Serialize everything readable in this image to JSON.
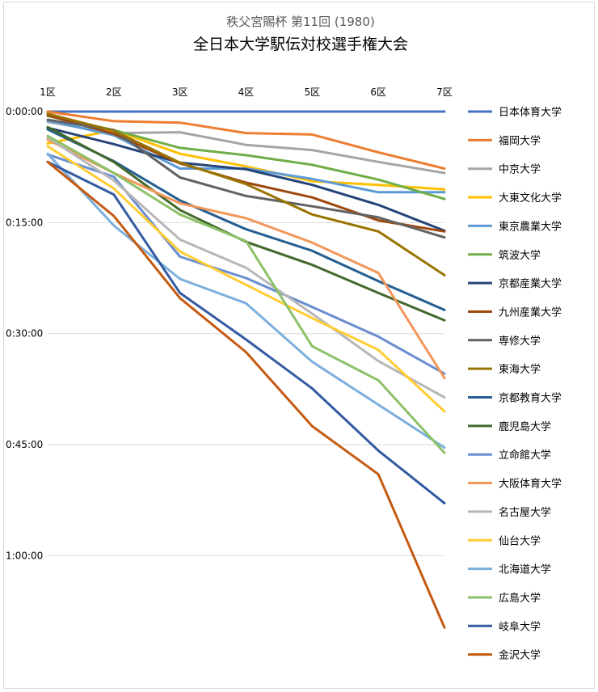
{
  "chart_data": {
    "type": "line",
    "title": "全日本大学駅伝対校選手権大会",
    "subtitle": "秩父宮賜杯 第11回 (1980)",
    "categories": [
      "1区",
      "2区",
      "3区",
      "4区",
      "5区",
      "6区",
      "7区"
    ],
    "y_ticks": [
      "0:00:00",
      "0:15:00",
      "0:30:00",
      "0:45:00",
      "1:00:00"
    ],
    "y_unit": "minutes behind leader",
    "ylim": [
      0,
      70
    ],
    "y_reversed": true,
    "legend_position": "right",
    "series": [
      {
        "name": "日本体育大学",
        "color": "#4472C4",
        "values": [
          0,
          0,
          0,
          0,
          0,
          0,
          0
        ]
      },
      {
        "name": "福岡大学",
        "color": "#ED7D31",
        "values": [
          0,
          1.3,
          1.5,
          2.9,
          3.1,
          5.5,
          7.7
        ]
      },
      {
        "name": "中京大学",
        "color": "#A5A5A5",
        "values": [
          1.4,
          2.9,
          2.8,
          4.5,
          5.2,
          6.8,
          8.3
        ]
      },
      {
        "name": "大東文化大学",
        "color": "#FFC000",
        "values": [
          4.3,
          2.5,
          5.7,
          7.4,
          9.4,
          9.9,
          10.5
        ]
      },
      {
        "name": "東京農業大学",
        "color": "#5B9BD5",
        "values": [
          1.2,
          3.2,
          7.7,
          7.7,
          9.1,
          10.9,
          10.9
        ]
      },
      {
        "name": "筑波大学",
        "color": "#70AD47",
        "values": [
          0.6,
          2.5,
          4.9,
          5.9,
          7.2,
          9.2,
          11.8
        ]
      },
      {
        "name": "京都産業大学",
        "color": "#264478",
        "values": [
          2.2,
          4.4,
          6.9,
          7.8,
          9.9,
          12.6,
          16.1
        ]
      },
      {
        "name": "九州産業大学",
        "color": "#9E480E",
        "values": [
          0.5,
          3.0,
          7.0,
          9.6,
          11.6,
          14.7,
          16.2
        ]
      },
      {
        "name": "専修大学",
        "color": "#636363",
        "values": [
          1.1,
          2.5,
          8.9,
          11.4,
          12.8,
          14.3,
          17.0
        ]
      },
      {
        "name": "東海大学",
        "color": "#997300",
        "values": [
          0.3,
          2.6,
          6.9,
          9.8,
          13.9,
          16.2,
          22.1
        ]
      },
      {
        "name": "京都教育大学",
        "color": "#255E91",
        "values": [
          2.4,
          6.7,
          12.0,
          15.9,
          18.8,
          22.9,
          26.8
        ]
      },
      {
        "name": "鹿児島大学",
        "color": "#43682B",
        "values": [
          2.1,
          6.8,
          13.3,
          17.6,
          20.7,
          24.5,
          28.2
        ]
      },
      {
        "name": "立命館大学",
        "color": "#698ED0",
        "values": [
          5.8,
          8.8,
          19.6,
          22.5,
          26.4,
          30.4,
          35.4
        ]
      },
      {
        "name": "大阪体育大学",
        "color": "#F1975A",
        "values": [
          3.8,
          8.3,
          12.4,
          14.4,
          17.7,
          21.8,
          36.0
        ]
      },
      {
        "name": "名古屋大学",
        "color": "#B7B7B7",
        "values": [
          3.5,
          9.3,
          17.3,
          21.1,
          27.3,
          33.7,
          38.6
        ]
      },
      {
        "name": "仙台大学",
        "color": "#FFCD33",
        "values": [
          4.7,
          10.4,
          18.9,
          23.4,
          27.9,
          32.2,
          40.5
        ]
      },
      {
        "name": "北海道大学",
        "color": "#7CAFDD",
        "values": [
          5.7,
          15.4,
          22.6,
          25.9,
          33.8,
          39.6,
          45.4
        ]
      },
      {
        "name": "広島大学",
        "color": "#8CC168",
        "values": [
          3.3,
          8.3,
          13.9,
          17.5,
          31.7,
          36.3,
          46.1
        ]
      },
      {
        "name": "岐阜大学",
        "color": "#335AA1",
        "values": [
          6.8,
          11.2,
          24.5,
          30.8,
          37.4,
          45.8,
          52.9
        ]
      },
      {
        "name": "金沢大学",
        "color": "#C55A11",
        "values": [
          6.8,
          14.1,
          25.2,
          32.5,
          42.5,
          49.0,
          69.7
        ]
      }
    ]
  }
}
